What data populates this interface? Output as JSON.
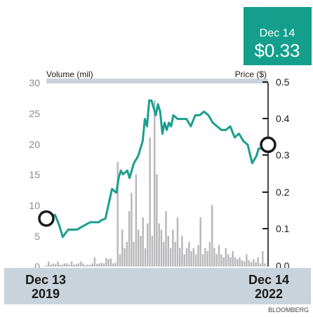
{
  "chart_data": {
    "type": "line",
    "callout": {
      "date": "Dec 14",
      "price": "$0.33"
    },
    "left_axis": {
      "label": "Volume (mil)",
      "ticks": [
        "30",
        "25",
        "20",
        "15",
        "10",
        "5",
        "0"
      ],
      "range": [
        0,
        30
      ]
    },
    "right_axis": {
      "label": "Price ($)",
      "ticks": [
        "0.5",
        "0.4",
        "0.3",
        "0.2",
        "0.1",
        "0.0"
      ],
      "range": [
        0,
        0.5
      ]
    },
    "x_labels": {
      "start": {
        "line1": "Dec 13",
        "line2": "2019"
      },
      "end": {
        "line1": "Dec 14",
        "line2": "2022"
      }
    },
    "source": "BLOOMBERG",
    "price_series": {
      "name": "Price ($)",
      "color": "#1a9e8f",
      "x": [
        0,
        0.02,
        0.04,
        0.06,
        0.075,
        0.1,
        0.12,
        0.14,
        0.17,
        0.2,
        0.22,
        0.24,
        0.25,
        0.27,
        0.3,
        0.32,
        0.33,
        0.34,
        0.35,
        0.37,
        0.38,
        0.4,
        0.42,
        0.44,
        0.45,
        0.46,
        0.47,
        0.48,
        0.5,
        0.51,
        0.52,
        0.53,
        0.54,
        0.55,
        0.56,
        0.57,
        0.58,
        0.6,
        0.62,
        0.64,
        0.66,
        0.68,
        0.7,
        0.72,
        0.74,
        0.76,
        0.78,
        0.8,
        0.82,
        0.84,
        0.86,
        0.88,
        0.9,
        0.92,
        0.94,
        0.95,
        0.96,
        0.97,
        0.98,
        1.0
      ],
      "y": [
        0.13,
        0.135,
        0.14,
        0.11,
        0.08,
        0.1,
        0.1,
        0.1,
        0.11,
        0.12,
        0.12,
        0.12,
        0.125,
        0.13,
        0.21,
        0.2,
        0.24,
        0.26,
        0.25,
        0.26,
        0.24,
        0.28,
        0.3,
        0.34,
        0.4,
        0.38,
        0.45,
        0.45,
        0.41,
        0.44,
        0.42,
        0.36,
        0.39,
        0.37,
        0.39,
        0.38,
        0.41,
        0.4,
        0.4,
        0.4,
        0.38,
        0.41,
        0.41,
        0.42,
        0.41,
        0.39,
        0.38,
        0.37,
        0.37,
        0.38,
        0.35,
        0.36,
        0.34,
        0.33,
        0.28,
        0.29,
        0.3,
        0.32,
        0.32,
        0.33
      ]
    },
    "volume_series": {
      "name": "Volume (mil)",
      "color": "#b7b7b9",
      "x": [
        0.0,
        0.0105,
        0.021,
        0.0315,
        0.0421,
        0.0526,
        0.0631,
        0.0736,
        0.0841,
        0.0946,
        0.1051,
        0.1156,
        0.1262,
        0.1367,
        0.1472,
        0.1577,
        0.1682,
        0.1787,
        0.1892,
        0.1997,
        0.2103,
        0.2208,
        0.2313,
        0.2418,
        0.2523,
        0.2628,
        0.2733,
        0.2838,
        0.2944,
        0.3049,
        0.3154,
        0.3259,
        0.3364,
        0.3469,
        0.3574,
        0.3679,
        0.3785,
        0.389,
        0.3995,
        0.41,
        0.4205,
        0.431,
        0.4415,
        0.452,
        0.4626,
        0.4731,
        0.4836,
        0.4941,
        0.5046,
        0.5151,
        0.5256,
        0.5361,
        0.5466,
        0.5572,
        0.5677,
        0.5782,
        0.5887,
        0.5992,
        0.6097,
        0.6202,
        0.6307,
        0.6413,
        0.6518,
        0.6623,
        0.6728,
        0.6833,
        0.6938,
        0.7043,
        0.7148,
        0.7254,
        0.7359,
        0.7464,
        0.7569,
        0.7674,
        0.7779,
        0.7884,
        0.7989,
        0.8095,
        0.82,
        0.8305,
        0.841,
        0.8515,
        0.862,
        0.8725,
        0.883,
        0.8936,
        0.9041,
        0.9146,
        0.9251,
        0.9356,
        0.9461,
        0.9566,
        0.9671,
        0.9777,
        0.9882,
        0.9987
      ],
      "y": [
        0.2,
        0.8,
        0.3,
        0.5,
        0.4,
        0.8,
        0.3,
        0.3,
        0.5,
        0.5,
        0.3,
        0.8,
        0.3,
        0.4,
        0.5,
        0.8,
        0.5,
        0.2,
        0.3,
        0.3,
        0.5,
        1.5,
        0.4,
        0.5,
        0.6,
        0.5,
        1.4,
        1.2,
        1.3,
        0.5,
        0.6,
        17.0,
        2.0,
        6.0,
        3.0,
        4.0,
        9.0,
        12.0,
        4.0,
        15.0,
        6.0,
        5.0,
        8.0,
        3.0,
        7.0,
        21.0,
        5.0,
        27.0,
        15.0,
        7.0,
        6.0,
        4.0,
        9.0,
        5.0,
        3.0,
        6.0,
        4.0,
        8.0,
        3.0,
        5.0,
        2.0,
        3.0,
        4.0,
        2.5,
        3.0,
        2.0,
        3.5,
        8.0,
        2.0,
        3.0,
        2.5,
        4.0,
        10.0,
        3.0,
        2.0,
        3.5,
        2.0,
        1.5,
        3.0,
        2.0,
        1.5,
        2.5,
        1.5,
        1.2,
        1.5,
        1.0,
        0.8,
        2.0,
        1.0,
        0.7,
        1.2,
        0.7,
        1.5,
        0.5,
        2.5,
        0.5
      ]
    }
  }
}
